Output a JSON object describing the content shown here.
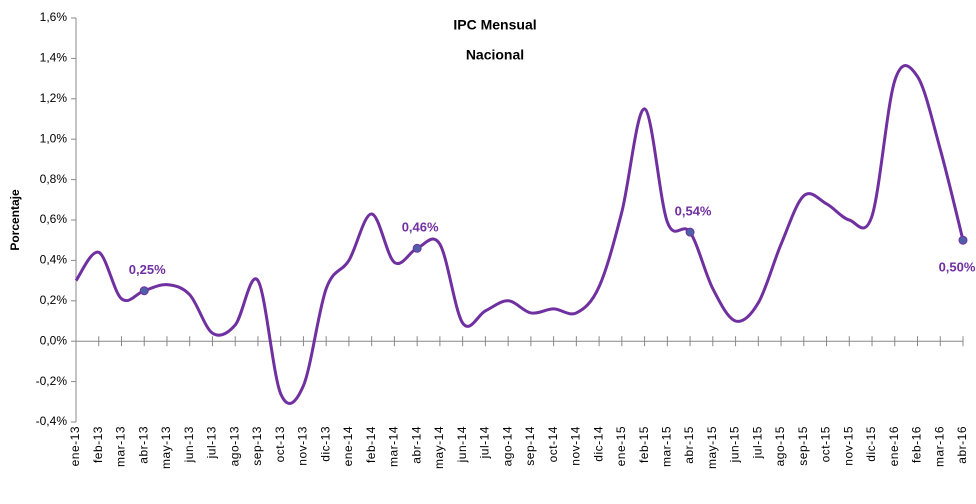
{
  "chart_data": {
    "type": "line",
    "title": "IPC Mensual",
    "subtitle": "Nacional",
    "y_label": "Porcentaje",
    "categories": [
      "ene-13",
      "feb-13",
      "mar-13",
      "abr-13",
      "may-13",
      "jun-13",
      "jul-13",
      "ago-13",
      "sep-13",
      "oct-13",
      "nov-13",
      "dic-13",
      "ene-14",
      "feb-14",
      "mar-14",
      "abr-14",
      "may-14",
      "jun-14",
      "jul-14",
      "ago-14",
      "sep-14",
      "oct-14",
      "nov-14",
      "dic-14",
      "ene-15",
      "feb-15",
      "mar-15",
      "abr-15",
      "may-15",
      "jun-15",
      "jul-15",
      "ago-15",
      "sep-15",
      "oct-15",
      "nov-15",
      "dic-15",
      "ene-16",
      "feb-16",
      "mar-16",
      "abr-16"
    ],
    "series": [
      {
        "name": "IPC Mensual",
        "color": "#7030a0",
        "values": [
          0.3,
          0.44,
          0.21,
          0.25,
          0.28,
          0.23,
          0.04,
          0.08,
          0.3,
          -0.26,
          -0.22,
          0.26,
          0.4,
          0.63,
          0.39,
          0.46,
          0.48,
          0.09,
          0.15,
          0.2,
          0.14,
          0.16,
          0.14,
          0.27,
          0.64,
          1.15,
          0.59,
          0.54,
          0.26,
          0.1,
          0.19,
          0.48,
          0.72,
          0.68,
          0.6,
          0.62,
          1.29,
          1.31,
          0.95,
          0.5
        ],
        "value_labels": [
          null,
          null,
          null,
          "0,25%",
          null,
          null,
          null,
          null,
          null,
          null,
          null,
          null,
          null,
          null,
          null,
          "0,46%",
          null,
          null,
          null,
          null,
          null,
          null,
          null,
          null,
          null,
          null,
          null,
          "0,54%",
          null,
          null,
          null,
          null,
          null,
          null,
          null,
          null,
          null,
          null,
          null,
          "0,50%"
        ]
      }
    ],
    "ylim": [
      -0.4,
      1.6
    ],
    "yticks": [
      {
        "value": -0.4,
        "label": "-0,4%"
      },
      {
        "value": -0.2,
        "label": "-0,2%"
      },
      {
        "value": 0,
        "label": "0,0%"
      },
      {
        "value": 0.2,
        "label": "0,2%"
      },
      {
        "value": 0.4,
        "label": "0,4%"
      },
      {
        "value": 0.6,
        "label": "0,6%"
      },
      {
        "value": 0.8,
        "label": "0,8%"
      },
      {
        "value": 1.0,
        "label": "1,0%"
      },
      {
        "value": 1.2,
        "label": "1,2%"
      },
      {
        "value": 1.4,
        "label": "1,4%"
      },
      {
        "value": 1.6,
        "label": "1,6%"
      }
    ],
    "grid": false,
    "smooth": true
  }
}
